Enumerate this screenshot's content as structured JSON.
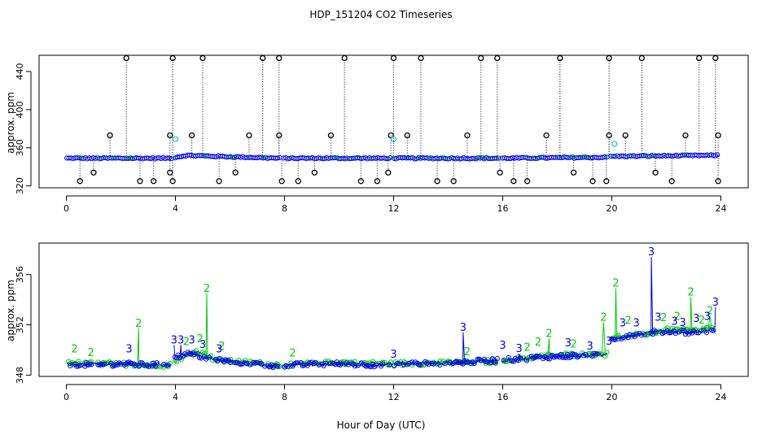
{
  "title": "HDP_151204  CO2 Timeseries",
  "xlabel": "Hour of Day (UTC)",
  "x_ticks": [
    0,
    4,
    8,
    12,
    16,
    20,
    24
  ],
  "colors": {
    "raw_line": "#000000",
    "raw_marker": "#000000",
    "series1": "#0000ee",
    "series2": "#00cc00",
    "cyan_marker": "#00cccc",
    "axis": "#000000"
  },
  "chart_data": [
    {
      "type": "scatter",
      "title": "HDP_151204  CO2 Timeseries",
      "xlabel": "",
      "ylabel": "approx. ppm",
      "xlim": [
        -1,
        25
      ],
      "ylim": [
        318,
        457
      ],
      "y_ticks": [
        320,
        360,
        400,
        440
      ],
      "x_ticks": [
        0,
        4,
        8,
        12,
        16,
        20,
        24
      ],
      "baseline": [
        {
          "x": 0.0,
          "y": 349
        },
        {
          "x": 3.8,
          "y": 349
        },
        {
          "x": 4.0,
          "y": 350
        },
        {
          "x": 4.4,
          "y": 352
        },
        {
          "x": 7.8,
          "y": 349
        },
        {
          "x": 8.0,
          "y": 349
        },
        {
          "x": 11.9,
          "y": 349
        },
        {
          "x": 12.0,
          "y": 349
        },
        {
          "x": 15.8,
          "y": 349
        },
        {
          "x": 16.0,
          "y": 349
        },
        {
          "x": 19.8,
          "y": 350
        },
        {
          "x": 20.0,
          "y": 351
        },
        {
          "x": 23.8,
          "y": 352
        }
      ],
      "gaps": [
        [
          3.85,
          3.95
        ],
        [
          7.85,
          7.95
        ],
        [
          11.92,
          11.98
        ],
        [
          15.85,
          15.95
        ],
        [
          19.85,
          19.95
        ]
      ],
      "highs": [
        2.2,
        3.9,
        5.0,
        7.2,
        7.8,
        10.2,
        12.0,
        13.0,
        15.2,
        15.8,
        18.1,
        19.9,
        21.1,
        23.2,
        23.8
      ],
      "mids": [
        1.6,
        3.8,
        4.6,
        6.7,
        7.8,
        9.7,
        11.9,
        12.5,
        14.7,
        17.6,
        19.9,
        20.5,
        22.7,
        23.9
      ],
      "lows": [
        0.5,
        1.0,
        2.7,
        3.2,
        3.8,
        3.9,
        5.6,
        6.2,
        7.9,
        8.5,
        9.1,
        10.8,
        11.4,
        11.8,
        13.6,
        14.2,
        15.9,
        16.4,
        16.9,
        18.6,
        19.3,
        19.8,
        21.6,
        22.2,
        23.9
      ],
      "high_value": 454,
      "mid_value": 373,
      "low_value": 325,
      "low2_value": 334,
      "cyan_points": [
        {
          "x": 4.0,
          "y": 369
        },
        {
          "x": 12.0,
          "y": 369
        },
        {
          "x": 20.1,
          "y": 364
        }
      ]
    },
    {
      "type": "line",
      "title": "",
      "xlabel": "Hour of Day (UTC)",
      "ylabel": "approx. ppm",
      "xlim": [
        -1,
        25
      ],
      "ylim": [
        347.9,
        358.5
      ],
      "y_ticks": [
        348,
        352,
        356
      ],
      "x_ticks": [
        0,
        4,
        8,
        12,
        16,
        20,
        24
      ],
      "series": [
        {
          "name": "3",
          "label": "3",
          "points": [
            {
              "x": 0.0,
              "y": 348.9
            },
            {
              "x": 1.0,
              "y": 348.8
            },
            {
              "x": 2.0,
              "y": 348.9
            },
            {
              "x": 3.0,
              "y": 348.8
            },
            {
              "x": 3.8,
              "y": 348.9
            },
            {
              "x": 4.0,
              "y": 349.4
            },
            {
              "x": 4.5,
              "y": 349.7
            },
            {
              "x": 5.5,
              "y": 349.2
            },
            {
              "x": 7.8,
              "y": 348.7
            },
            {
              "x": 8.0,
              "y": 348.8
            },
            {
              "x": 10.0,
              "y": 348.9
            },
            {
              "x": 11.9,
              "y": 348.8
            },
            {
              "x": 12.0,
              "y": 348.9
            },
            {
              "x": 14.4,
              "y": 349.0
            },
            {
              "x": 15.8,
              "y": 349.2
            },
            {
              "x": 16.0,
              "y": 349.2
            },
            {
              "x": 18.0,
              "y": 349.5
            },
            {
              "x": 19.8,
              "y": 349.6
            },
            {
              "x": 20.0,
              "y": 350.9
            },
            {
              "x": 21.0,
              "y": 351.3
            },
            {
              "x": 22.0,
              "y": 351.5
            },
            {
              "x": 23.0,
              "y": 351.4
            },
            {
              "x": 23.7,
              "y": 351.6
            }
          ],
          "spikes": [
            {
              "x": 3.95,
              "y": 350.4
            },
            {
              "x": 4.2,
              "y": 350.4
            },
            {
              "x": 14.55,
              "y": 351.4
            },
            {
              "x": 16.6,
              "y": 349.7
            },
            {
              "x": 19.9,
              "y": 350.3
            },
            {
              "x": 21.45,
              "y": 357.4
            },
            {
              "x": 23.8,
              "y": 353.4
            }
          ]
        },
        {
          "name": "2",
          "label": "2",
          "points": [
            {
              "x": 0.0,
              "y": 349.0
            },
            {
              "x": 1.0,
              "y": 348.9
            },
            {
              "x": 2.0,
              "y": 348.9
            },
            {
              "x": 3.0,
              "y": 348.8
            },
            {
              "x": 3.8,
              "y": 348.8
            },
            {
              "x": 4.0,
              "y": 349.2
            },
            {
              "x": 4.8,
              "y": 349.9
            },
            {
              "x": 5.5,
              "y": 349.2
            },
            {
              "x": 7.8,
              "y": 348.8
            },
            {
              "x": 8.0,
              "y": 348.8
            },
            {
              "x": 10.0,
              "y": 349.0
            },
            {
              "x": 11.9,
              "y": 348.9
            },
            {
              "x": 12.0,
              "y": 348.9
            },
            {
              "x": 14.4,
              "y": 349.0
            },
            {
              "x": 15.8,
              "y": 349.1
            },
            {
              "x": 16.0,
              "y": 349.2
            },
            {
              "x": 18.0,
              "y": 349.6
            },
            {
              "x": 19.8,
              "y": 349.7
            },
            {
              "x": 20.0,
              "y": 351.0
            },
            {
              "x": 21.0,
              "y": 351.2
            },
            {
              "x": 22.0,
              "y": 351.6
            },
            {
              "x": 23.0,
              "y": 351.5
            },
            {
              "x": 23.7,
              "y": 351.8
            }
          ],
          "spikes": [
            {
              "x": 2.65,
              "y": 351.7
            },
            {
              "x": 5.15,
              "y": 354.5
            },
            {
              "x": 17.7,
              "y": 350.9
            },
            {
              "x": 19.7,
              "y": 352.2
            },
            {
              "x": 20.15,
              "y": 354.9
            },
            {
              "x": 22.9,
              "y": 354.2
            },
            {
              "x": 23.6,
              "y": 352.7
            }
          ]
        }
      ]
    }
  ]
}
